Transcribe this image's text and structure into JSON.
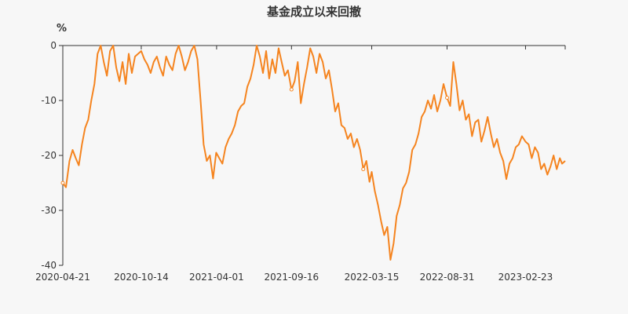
{
  "chart_data": {
    "type": "line",
    "title": "基金成立以来回撤",
    "ylabel": "%",
    "xlabel": "",
    "ylim": [
      -40,
      0
    ],
    "yticks": [
      0,
      -10,
      -20,
      -30,
      -40
    ],
    "xticks": [
      "2020-04-21",
      "2020-10-14",
      "2021-04-01",
      "2021-09-16",
      "2022-03-15",
      "2022-08-31",
      "2023-02-23"
    ],
    "x_range": [
      "2020-04-21",
      "2023-05-23"
    ],
    "grid": false,
    "series_color": "#f5841f",
    "series": [
      {
        "name": "",
        "points": [
          [
            "2020-04-21",
            -25.0
          ],
          [
            "2020-04-28",
            -25.8
          ],
          [
            "2020-05-06",
            -21.0
          ],
          [
            "2020-05-13",
            -19.0
          ],
          [
            "2020-05-20",
            -20.5
          ],
          [
            "2020-05-27",
            -21.8
          ],
          [
            "2020-06-03",
            -18.0
          ],
          [
            "2020-06-10",
            -15.0
          ],
          [
            "2020-06-17",
            -13.5
          ],
          [
            "2020-06-24",
            -10.0
          ],
          [
            "2020-07-01",
            -7.0
          ],
          [
            "2020-07-08",
            -1.5
          ],
          [
            "2020-07-15",
            0.0
          ],
          [
            "2020-07-22",
            -3.0
          ],
          [
            "2020-07-29",
            -5.5
          ],
          [
            "2020-08-05",
            -1.0
          ],
          [
            "2020-08-12",
            0.0
          ],
          [
            "2020-08-19",
            -4.0
          ],
          [
            "2020-08-26",
            -6.5
          ],
          [
            "2020-09-02",
            -3.0
          ],
          [
            "2020-09-09",
            -7.0
          ],
          [
            "2020-09-16",
            -1.5
          ],
          [
            "2020-09-23",
            -5.0
          ],
          [
            "2020-09-30",
            -2.0
          ],
          [
            "2020-10-14",
            -1.0
          ],
          [
            "2020-10-21",
            -2.5
          ],
          [
            "2020-10-28",
            -3.5
          ],
          [
            "2020-11-04",
            -5.0
          ],
          [
            "2020-11-11",
            -3.0
          ],
          [
            "2020-11-18",
            -2.0
          ],
          [
            "2020-11-25",
            -4.0
          ],
          [
            "2020-12-02",
            -5.5
          ],
          [
            "2020-12-09",
            -2.0
          ],
          [
            "2020-12-16",
            -3.5
          ],
          [
            "2020-12-23",
            -4.5
          ],
          [
            "2020-12-30",
            -1.5
          ],
          [
            "2021-01-06",
            0.0
          ],
          [
            "2021-01-13",
            -2.0
          ],
          [
            "2021-01-20",
            -4.5
          ],
          [
            "2021-01-27",
            -3.0
          ],
          [
            "2021-02-03",
            -1.0
          ],
          [
            "2021-02-10",
            0.0
          ],
          [
            "2021-02-17",
            -2.5
          ],
          [
            "2021-02-24",
            -10.0
          ],
          [
            "2021-03-03",
            -18.0
          ],
          [
            "2021-03-10",
            -21.0
          ],
          [
            "2021-03-17",
            -20.0
          ],
          [
            "2021-03-24",
            -24.2
          ],
          [
            "2021-03-31",
            -19.5
          ],
          [
            "2021-04-07",
            -20.5
          ],
          [
            "2021-04-14",
            -21.5
          ],
          [
            "2021-04-21",
            -18.5
          ],
          [
            "2021-04-28",
            -17.0
          ],
          [
            "2021-05-05",
            -16.0
          ],
          [
            "2021-05-12",
            -14.5
          ],
          [
            "2021-05-19",
            -12.0
          ],
          [
            "2021-05-26",
            -11.0
          ],
          [
            "2021-06-02",
            -10.5
          ],
          [
            "2021-06-09",
            -7.5
          ],
          [
            "2021-06-16",
            -6.0
          ],
          [
            "2021-06-23",
            -3.5
          ],
          [
            "2021-06-30",
            0.0
          ],
          [
            "2021-07-07",
            -2.0
          ],
          [
            "2021-07-14",
            -5.0
          ],
          [
            "2021-07-21",
            -1.0
          ],
          [
            "2021-07-28",
            -6.0
          ],
          [
            "2021-08-04",
            -2.5
          ],
          [
            "2021-08-11",
            -5.0
          ],
          [
            "2021-08-18",
            -0.5
          ],
          [
            "2021-08-25",
            -3.0
          ],
          [
            "2021-09-01",
            -5.5
          ],
          [
            "2021-09-08",
            -4.5
          ],
          [
            "2021-09-16",
            -8.0
          ],
          [
            "2021-09-23",
            -6.5
          ],
          [
            "2021-09-30",
            -3.0
          ],
          [
            "2021-10-07",
            -10.5
          ],
          [
            "2021-10-14",
            -7.0
          ],
          [
            "2021-10-21",
            -4.0
          ],
          [
            "2021-10-28",
            -0.5
          ],
          [
            "2021-11-04",
            -2.0
          ],
          [
            "2021-11-11",
            -5.0
          ],
          [
            "2021-11-18",
            -1.5
          ],
          [
            "2021-11-25",
            -3.0
          ],
          [
            "2021-12-02",
            -6.0
          ],
          [
            "2021-12-09",
            -4.5
          ],
          [
            "2021-12-16",
            -8.0
          ],
          [
            "2021-12-23",
            -12.0
          ],
          [
            "2021-12-30",
            -10.5
          ],
          [
            "2022-01-06",
            -14.5
          ],
          [
            "2022-01-13",
            -15.0
          ],
          [
            "2022-01-20",
            -17.0
          ],
          [
            "2022-01-27",
            -16.0
          ],
          [
            "2022-02-03",
            -18.5
          ],
          [
            "2022-02-10",
            -17.0
          ],
          [
            "2022-02-17",
            -19.0
          ],
          [
            "2022-02-24",
            -22.5
          ],
          [
            "2022-03-03",
            -21.0
          ],
          [
            "2022-03-10",
            -24.8
          ],
          [
            "2022-03-15",
            -23.0
          ],
          [
            "2022-03-22",
            -26.5
          ],
          [
            "2022-03-29",
            -29.0
          ],
          [
            "2022-04-05",
            -32.0
          ],
          [
            "2022-04-12",
            -34.5
          ],
          [
            "2022-04-19",
            -33.0
          ],
          [
            "2022-04-26",
            -39.0
          ],
          [
            "2022-05-03",
            -36.0
          ],
          [
            "2022-05-10",
            -31.0
          ],
          [
            "2022-05-17",
            -29.0
          ],
          [
            "2022-05-24",
            -26.0
          ],
          [
            "2022-05-31",
            -25.0
          ],
          [
            "2022-06-07",
            -23.0
          ],
          [
            "2022-06-14",
            -19.0
          ],
          [
            "2022-06-21",
            -18.0
          ],
          [
            "2022-06-28",
            -16.0
          ],
          [
            "2022-07-05",
            -13.0
          ],
          [
            "2022-07-12",
            -12.0
          ],
          [
            "2022-07-19",
            -10.0
          ],
          [
            "2022-07-26",
            -11.5
          ],
          [
            "2022-08-02",
            -9.0
          ],
          [
            "2022-08-09",
            -12.0
          ],
          [
            "2022-08-16",
            -10.0
          ],
          [
            "2022-08-23",
            -7.0
          ],
          [
            "2022-08-31",
            -9.5
          ],
          [
            "2022-09-07",
            -11.0
          ],
          [
            "2022-09-14",
            -3.0
          ],
          [
            "2022-09-21",
            -7.0
          ],
          [
            "2022-09-28",
            -11.8
          ],
          [
            "2022-10-05",
            -10.0
          ],
          [
            "2022-10-12",
            -13.5
          ],
          [
            "2022-10-19",
            -12.5
          ],
          [
            "2022-10-26",
            -16.5
          ],
          [
            "2022-11-02",
            -14.0
          ],
          [
            "2022-11-09",
            -13.5
          ],
          [
            "2022-11-16",
            -17.5
          ],
          [
            "2022-11-23",
            -15.5
          ],
          [
            "2022-11-30",
            -13.0
          ],
          [
            "2022-12-07",
            -16.0
          ],
          [
            "2022-12-14",
            -18.5
          ],
          [
            "2022-12-21",
            -17.0
          ],
          [
            "2022-12-28",
            -19.5
          ],
          [
            "2023-01-04",
            -21.0
          ],
          [
            "2023-01-11",
            -24.3
          ],
          [
            "2023-01-18",
            -21.5
          ],
          [
            "2023-01-25",
            -20.5
          ],
          [
            "2023-02-01",
            -18.5
          ],
          [
            "2023-02-08",
            -18.0
          ],
          [
            "2023-02-15",
            -16.5
          ],
          [
            "2023-02-23",
            -17.5
          ],
          [
            "2023-03-02",
            -18.0
          ],
          [
            "2023-03-09",
            -20.5
          ],
          [
            "2023-03-16",
            -18.5
          ],
          [
            "2023-03-23",
            -19.5
          ],
          [
            "2023-03-30",
            -22.5
          ],
          [
            "2023-04-06",
            -21.5
          ],
          [
            "2023-04-13",
            -23.5
          ],
          [
            "2023-04-20",
            -22.0
          ],
          [
            "2023-04-27",
            -20.0
          ],
          [
            "2023-05-04",
            -22.5
          ],
          [
            "2023-05-11",
            -20.5
          ],
          [
            "2023-05-16",
            -21.5
          ],
          [
            "2023-05-23",
            -21.0
          ]
        ]
      }
    ]
  }
}
